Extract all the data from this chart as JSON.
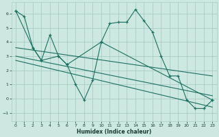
{
  "xlabel": "Humidex (Indice chaleur)",
  "background_color": "#cde8e0",
  "grid_color": "#aaccc4",
  "line_color": "#1a6e62",
  "xlim": [
    -0.5,
    23.5
  ],
  "ylim": [
    -1.6,
    6.8
  ],
  "xticks": [
    0,
    1,
    2,
    3,
    4,
    5,
    6,
    7,
    8,
    9,
    10,
    11,
    12,
    13,
    14,
    15,
    16,
    17,
    18,
    19,
    20,
    21,
    22,
    23
  ],
  "yticks": [
    -1,
    0,
    1,
    2,
    3,
    4,
    5,
    6
  ],
  "series1_x": [
    0,
    1,
    2,
    3,
    4,
    5,
    6,
    7,
    8,
    9,
    10,
    11,
    12,
    13,
    14,
    15,
    16,
    17,
    18,
    19,
    20,
    21,
    22,
    23
  ],
  "series1_y": [
    6.2,
    5.8,
    3.6,
    2.7,
    4.5,
    3.0,
    2.4,
    1.0,
    -0.1,
    1.3,
    4.0,
    5.3,
    5.4,
    5.4,
    6.3,
    5.5,
    4.7,
    3.0,
    1.6,
    1.6,
    -0.1,
    -0.7,
    -0.7,
    -0.1
  ],
  "series2_x": [
    0,
    2,
    3,
    5,
    6,
    10,
    23
  ],
  "series2_y": [
    6.2,
    3.6,
    2.7,
    3.0,
    2.4,
    4.0,
    -0.1
  ],
  "trend1_x": [
    0,
    23
  ],
  "trend1_y": [
    3.6,
    1.6
  ],
  "trend2_x": [
    0,
    23
  ],
  "trend2_y": [
    3.0,
    0.2
  ],
  "trend3_x": [
    0,
    23
  ],
  "trend3_y": [
    2.7,
    -0.6
  ]
}
